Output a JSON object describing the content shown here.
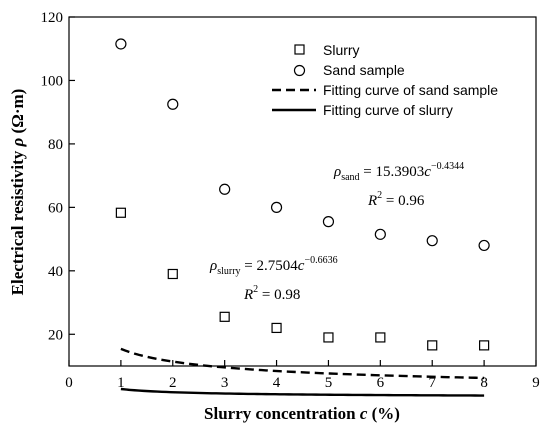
{
  "chart_data": {
    "type": "scatter",
    "title": "",
    "xlabel": {
      "prefix": "Slurry concentration ",
      "var": "c",
      "suffix": " (%)"
    },
    "ylabel": {
      "prefix": "Electrical resistivity ",
      "var": "ρ",
      "suffix": " (Ω·m)"
    },
    "xlim": [
      0,
      9
    ],
    "ylim": [
      10,
      120
    ],
    "xticks": [
      0,
      1,
      2,
      3,
      4,
      5,
      6,
      7,
      8,
      9
    ],
    "yticks": [
      20,
      40,
      60,
      80,
      100,
      120
    ],
    "legend_position": "top-right",
    "series": [
      {
        "name": "Slurry",
        "kind": "points",
        "marker": "square",
        "x": [
          1,
          2,
          3,
          4,
          5,
          6,
          7,
          8
        ],
        "y": [
          58.3,
          39.0,
          25.5,
          22.0,
          19.0,
          19.0,
          16.5,
          16.5
        ]
      },
      {
        "name": "Sand  sample",
        "kind": "points",
        "marker": "circle",
        "x": [
          1,
          2,
          3,
          4,
          5,
          6,
          7,
          8
        ],
        "y": [
          111.5,
          92.5,
          65.7,
          60.0,
          55.5,
          51.5,
          49.5,
          48.0
        ]
      },
      {
        "name": "Fitting curve of sand sample",
        "kind": "fit",
        "dash": "dashed",
        "coef": 15.3903,
        "exp": 0.4344,
        "xrange": [
          1,
          8
        ]
      },
      {
        "name": "Fitting curve of slurry",
        "kind": "fit",
        "dash": "solid",
        "coef": 2.7504,
        "exp": 0.6636,
        "xrange": [
          1,
          8
        ]
      }
    ],
    "annotations": {
      "sand": {
        "rho": "ρ",
        "sub": "sand",
        "eq": " = 15.3903",
        "var": "c",
        "sup": "−0.4344",
        "r2_left": "R",
        "r2_sup": "2",
        "r2_right": " = 0.96"
      },
      "slurry": {
        "rho": "ρ",
        "sub": "slurry",
        "eq": " = 2.7504",
        "var": "c",
        "sup": "−0.6636",
        "r2_left": "R",
        "r2_sup": "2",
        "r2_right": " = 0.98"
      }
    }
  }
}
